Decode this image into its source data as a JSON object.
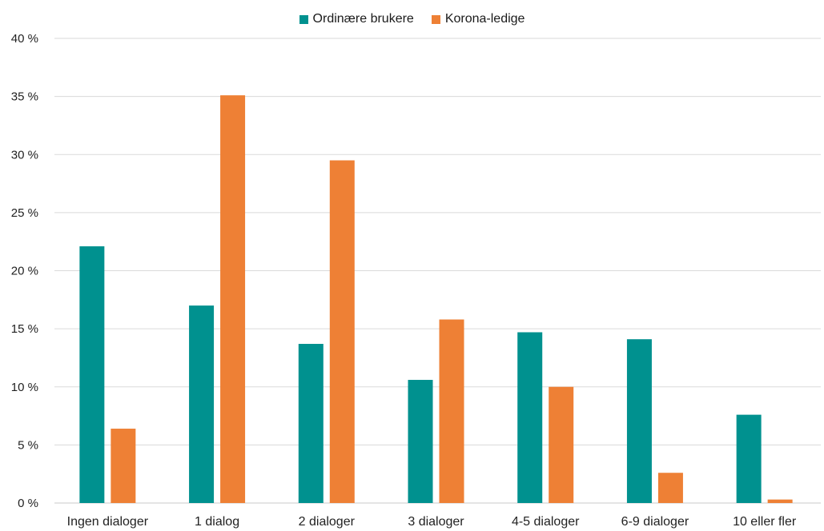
{
  "chart_data": {
    "type": "bar",
    "categories": [
      "Ingen dialoger",
      "1 dialog",
      "2 dialoger",
      "3 dialoger",
      "4-5 dialoger",
      "6-9 dialoger",
      "10 eller fler"
    ],
    "series": [
      {
        "name": "Ordinære brukere",
        "color": "#00918f",
        "values": [
          22.1,
          17.0,
          13.7,
          10.6,
          14.7,
          14.1,
          7.6
        ]
      },
      {
        "name": "Korona-ledige",
        "color": "#ee8035",
        "values": [
          6.4,
          35.1,
          29.5,
          15.8,
          10.0,
          2.6,
          0.3
        ]
      }
    ],
    "yticks": [
      "0 %",
      "5 %",
      "10 %",
      "15 %",
      "20 %",
      "25 %",
      "30 %",
      "35 %",
      "40 %"
    ],
    "ylim": [
      0,
      40
    ],
    "grid": true,
    "legend_position": "top-center"
  }
}
